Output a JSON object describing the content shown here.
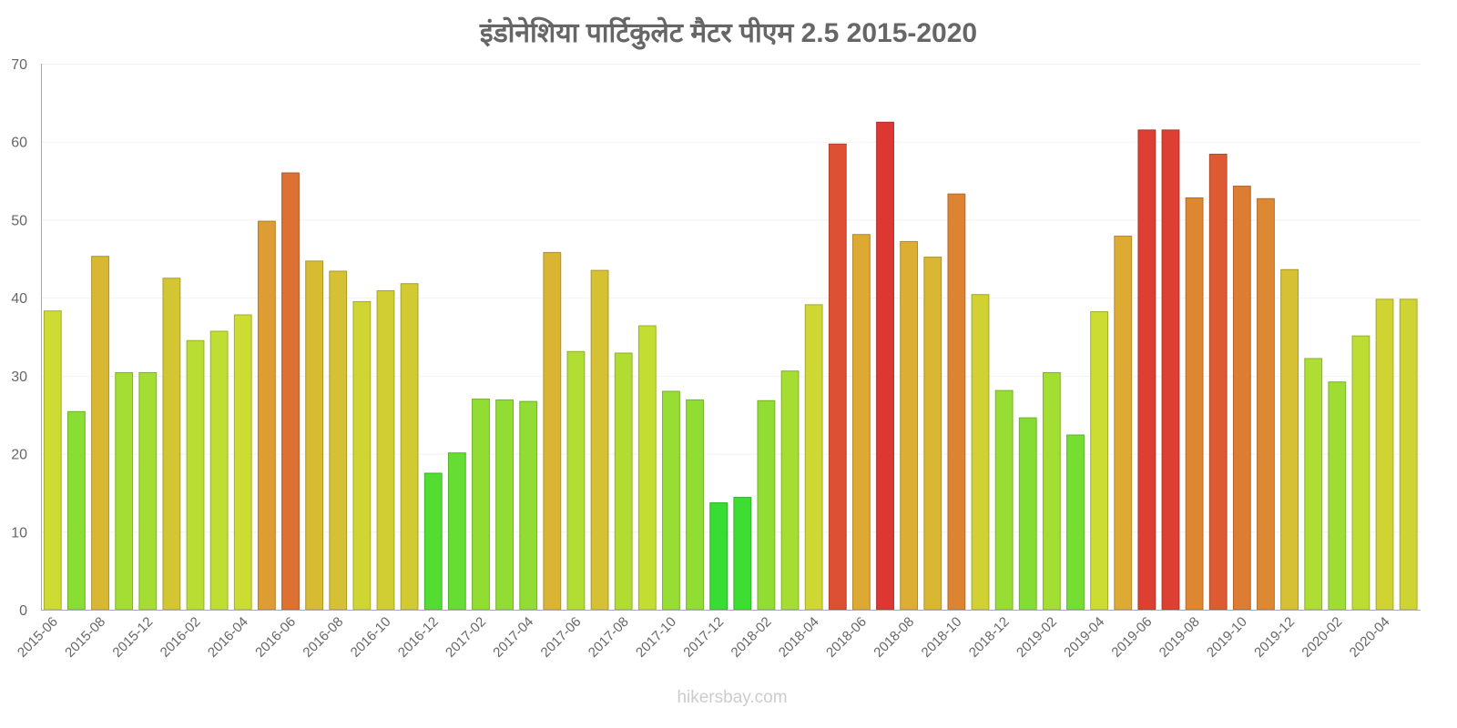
{
  "chart_data": {
    "type": "bar",
    "title": "इंडोनेशिया   पार्टिकुलेट   मैटर   पीएम   2.5 2015-2020",
    "xlabel": "",
    "ylabel": "",
    "ylim": [
      0,
      70
    ],
    "yticks": [
      "0",
      "10",
      "20",
      "30",
      "40",
      "50",
      "60",
      "70"
    ],
    "categories": [
      "2015-06",
      "2015-07",
      "2015-08",
      "2015-11",
      "2015-12",
      "2016-01",
      "2016-02",
      "2016-03",
      "2016-04",
      "2016-05",
      "2016-06",
      "2016-07",
      "2016-08",
      "2016-09",
      "2016-10",
      "2016-11",
      "2016-12",
      "2017-01",
      "2017-02",
      "2017-03",
      "2017-04",
      "2017-05",
      "2017-06",
      "2017-07",
      "2017-08",
      "2017-09",
      "2017-10",
      "2017-11",
      "2017-12",
      "2018-01",
      "2018-02",
      "2018-03",
      "2018-04",
      "2018-05",
      "2018-06",
      "2018-07",
      "2018-08",
      "2018-09",
      "2018-10",
      "2018-11",
      "2018-12",
      "2019-01",
      "2019-02",
      "2019-03",
      "2019-04",
      "2019-05",
      "2019-06",
      "2019-07",
      "2019-08",
      "2019-09",
      "2019-10",
      "2019-11",
      "2019-12",
      "2020-01",
      "2020-02",
      "2020-03",
      "2020-04",
      "2020-05"
    ],
    "xtick_labels": [
      "2015-06",
      "2015-08",
      "2015-12",
      "2016-02",
      "2016-04",
      "2016-06",
      "2016-08",
      "2016-10",
      "2016-12",
      "2017-02",
      "2017-04",
      "2017-06",
      "2017-08",
      "2017-10",
      "2017-12",
      "2018-02",
      "2018-04",
      "2018-06",
      "2018-08",
      "2018-10",
      "2018-12",
      "2019-02",
      "2019-04",
      "2019-06",
      "2019-08",
      "2019-10",
      "2019-12",
      "2020-02",
      "2020-04"
    ],
    "values": [
      38.3,
      25.4,
      45.3,
      30.4,
      30.4,
      42.5,
      34.5,
      35.7,
      37.8,
      49.8,
      56.0,
      44.7,
      43.4,
      39.5,
      40.9,
      41.8,
      17.5,
      20.1,
      27.0,
      26.9,
      26.7,
      45.8,
      33.1,
      43.5,
      32.9,
      36.4,
      28.0,
      26.9,
      13.7,
      14.4,
      26.8,
      30.6,
      39.1,
      59.7,
      48.1,
      62.5,
      47.2,
      45.2,
      53.3,
      40.4,
      28.1,
      24.6,
      30.4,
      22.4,
      38.2,
      47.9,
      61.5,
      61.5,
      52.8,
      58.4,
      54.3,
      52.7,
      43.6,
      32.2,
      29.2,
      35.1,
      39.8,
      39.8
    ],
    "grid": true,
    "legend": "none"
  },
  "watermark": "hikersbay.com"
}
